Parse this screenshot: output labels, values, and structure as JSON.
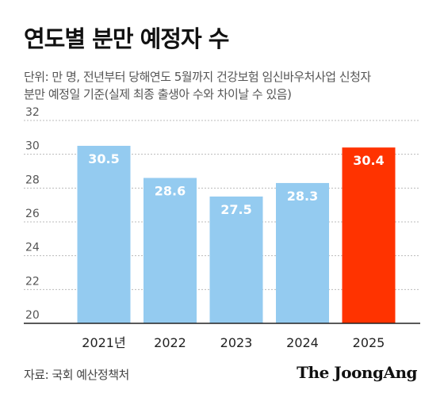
{
  "title": "연도별 분만 예정자 수",
  "subtitle_lines": [
    "단위: 만 명, 전년부터 당해연도 5월까지 건강보험 임신바우처사업 신청자",
    "분만 예정일 기준(실제 최종 출생아 수와 차이날 수 있음)"
  ],
  "source": "자료: 국회 예산정책처",
  "logo": "The JoongAng",
  "chart_data": {
    "type": "bar",
    "categories": [
      "2021년",
      "2022",
      "2023",
      "2024",
      "2025"
    ],
    "values": [
      30.5,
      28.6,
      27.5,
      28.3,
      30.4
    ],
    "value_labels": [
      "30.5",
      "28.6",
      "27.5",
      "28.3",
      "30.4"
    ],
    "ylim": [
      20,
      32
    ],
    "yticks": [
      20,
      22,
      24,
      26,
      28,
      30,
      32
    ],
    "grid": true,
    "colors": {
      "default": "#94cbf0",
      "highlight": "#ff3300",
      "highlight_index": 4,
      "grid": "#bbbbbb",
      "axis": "#222222"
    }
  }
}
